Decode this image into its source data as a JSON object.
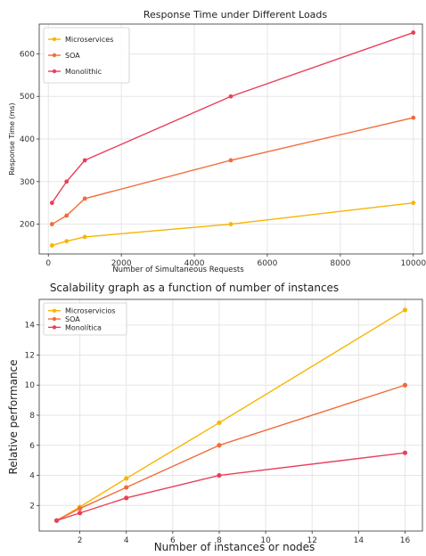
{
  "chart_data": [
    {
      "type": "line",
      "title": "Response Time under Different Loads",
      "xlabel": "Number of Simultaneous Requests",
      "ylabel": "Response Time (ms)",
      "xlim": [
        -250,
        10250
      ],
      "ylim": [
        130,
        670
      ],
      "xticks": [
        0,
        2000,
        4000,
        6000,
        8000,
        10000
      ],
      "xtick_labels": [
        "0",
        "2000",
        "4000",
        "6000",
        "8000",
        "10000"
      ],
      "yticks": [
        200,
        300,
        400,
        500,
        600
      ],
      "ytick_labels": [
        "200",
        "300",
        "400",
        "500",
        "600"
      ],
      "x": [
        100,
        500,
        1000,
        5000,
        10000
      ],
      "series": [
        {
          "name": "Microservices",
          "color": "#F7B500",
          "values": [
            150,
            160,
            170,
            200,
            250
          ]
        },
        {
          "name": "SOA",
          "color": "#F26B3A",
          "values": [
            200,
            220,
            260,
            350,
            450
          ]
        },
        {
          "name": "Monolithic",
          "color": "#E8405A",
          "values": [
            250,
            300,
            350,
            500,
            650
          ]
        }
      ],
      "grid": true,
      "legend": "top-left"
    },
    {
      "type": "line",
      "title": "Scalability graph as a function of number of instances",
      "xlabel": "Number of instances or nodes",
      "ylabel": "Relative performance",
      "xlim": [
        0.25,
        16.75
      ],
      "ylim": [
        0.3,
        15.7
      ],
      "xticks": [
        2,
        4,
        6,
        8,
        10,
        12,
        14,
        16
      ],
      "xtick_labels": [
        "2",
        "4",
        "6",
        "8",
        "10",
        "12",
        "14",
        "16"
      ],
      "yticks": [
        2,
        4,
        6,
        8,
        10,
        12,
        14
      ],
      "ytick_labels": [
        "2",
        "4",
        "6",
        "8",
        "10",
        "12",
        "14"
      ],
      "x": [
        1,
        2,
        4,
        8,
        16
      ],
      "series": [
        {
          "name": "Microservicios",
          "color": "#F7B500",
          "values": [
            1,
            1.9,
            3.8,
            7.5,
            15
          ]
        },
        {
          "name": "SOA",
          "color": "#F26B3A",
          "values": [
            1,
            1.8,
            3.2,
            6,
            10
          ]
        },
        {
          "name": "Monolítica",
          "color": "#E8405A",
          "values": [
            1,
            1.5,
            2.5,
            4,
            5.5
          ]
        }
      ],
      "grid": true,
      "legend": "top-left"
    }
  ]
}
